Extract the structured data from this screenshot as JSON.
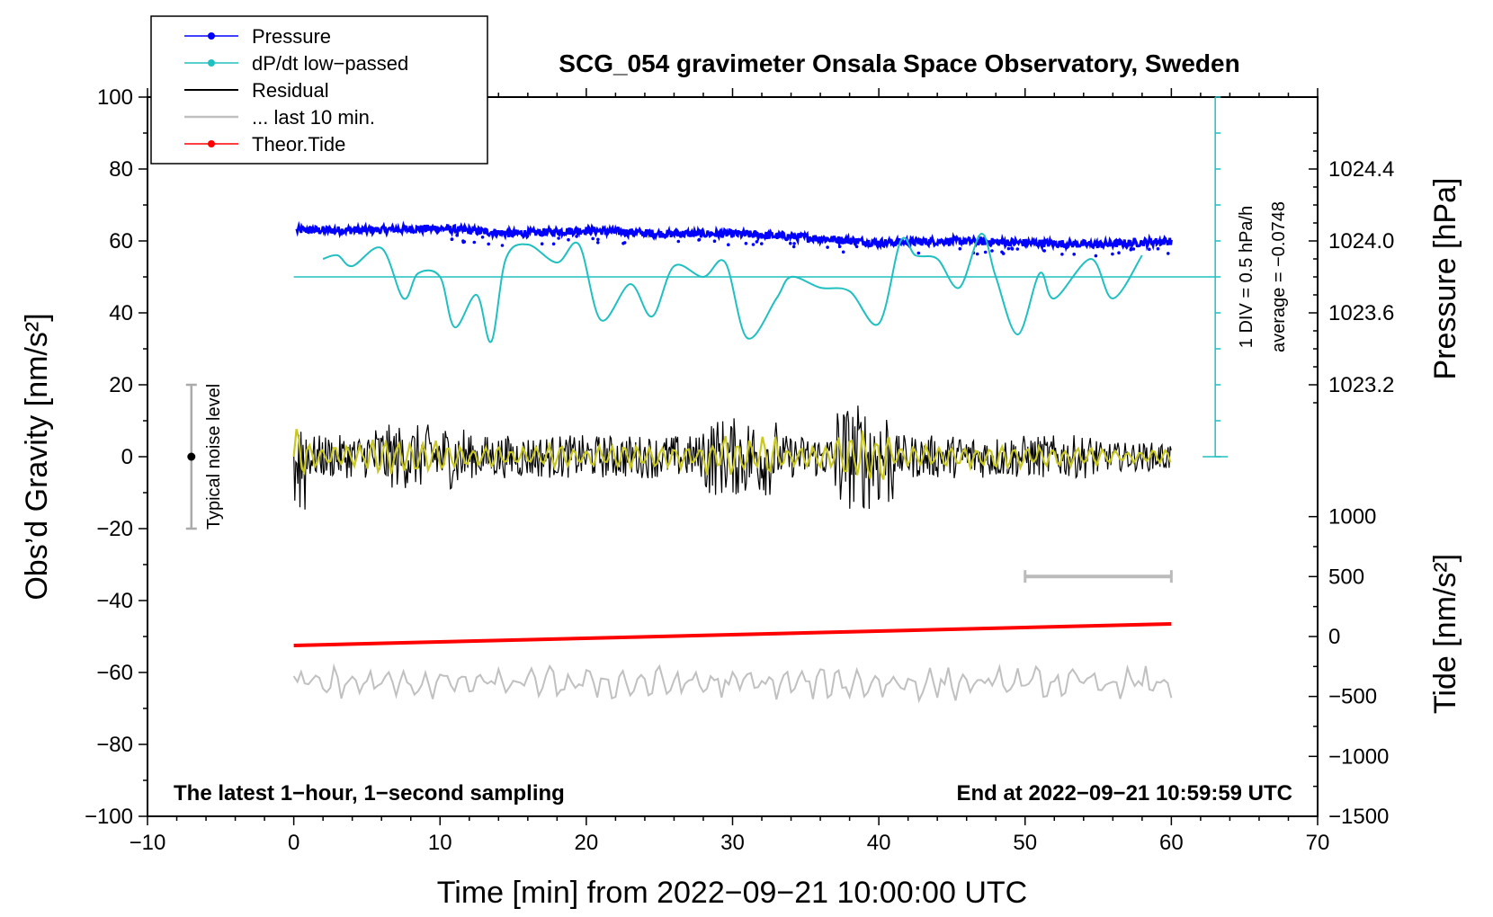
{
  "chart_data": {
    "type": "line",
    "title": "SCG_054 gravimeter Onsala Space Observatory, Sweden",
    "xlabel": "Time [min] from 2022−09−21 10:00:00 UTC",
    "ylabel_left": "Obs’d Gravity [nm/s²]",
    "ylabel_pressure": "Pressure [hPa]",
    "ylabel_tide": "Tide [nm/s²]",
    "xlim": [
      -10,
      70
    ],
    "ylim": [
      -100,
      100
    ],
    "x_ticks": [
      "−10",
      "0",
      "10",
      "20",
      "30",
      "40",
      "50",
      "60",
      "70"
    ],
    "y_ticks": [
      "−100",
      "−80",
      "−60",
      "−40",
      "−20",
      "0",
      "20",
      "40",
      "60",
      "80",
      "100"
    ],
    "pressure_ticks": [
      "1023.2",
      "1023.6",
      "1024.0",
      "1024.4"
    ],
    "tide_ticks": [
      "−1500",
      "−1000",
      "−500",
      "0",
      "500",
      "1000"
    ],
    "footer_left": "The latest 1−hour, 1−second sampling",
    "footer_right": "End at 2022−09−21 10:59:59 UTC",
    "noise_label": "Typical noise level",
    "dpdt_scale_label": "1 DIV = 0.5 hPa/h",
    "dpdt_average_label": "average = −0.0748",
    "legend": [
      {
        "label": "Pressure",
        "color": "#0000ff"
      },
      {
        "label": "dP/dt low−passed",
        "color": "#20c0c0"
      },
      {
        "label": "Residual",
        "color": "#000000"
      },
      {
        "label": "... last 10 min.",
        "color": "#c0c0c0"
      },
      {
        "label": "Theor.Tide",
        "color": "#ff0000"
      }
    ],
    "series": [
      {
        "name": "Pressure",
        "color": "#0000ff",
        "x": [
          0,
          5,
          10,
          15,
          20,
          25,
          30,
          35,
          40,
          45,
          50,
          55,
          60
        ],
        "y": [
          63,
          63,
          63.5,
          62,
          63,
          62,
          62,
          61,
          59.5,
          60,
          59.5,
          59,
          60
        ]
      },
      {
        "name": "dP/dt low−passed",
        "color": "#20c0c0",
        "x": [
          2,
          3,
          4,
          6,
          7.5,
          8.5,
          10,
          11,
          12.5,
          13.5,
          14.5,
          16,
          18,
          19.5,
          21,
          23,
          24.5,
          26,
          28,
          29.5,
          31,
          33,
          34,
          36,
          38,
          40,
          41.5,
          42.5,
          44,
          45.5,
          47,
          48,
          49.5,
          51,
          52,
          54.5,
          56,
          58
        ],
        "y": [
          55,
          56,
          53,
          58,
          44,
          51,
          50,
          36,
          45,
          32,
          55,
          59,
          54,
          59,
          38,
          48,
          39,
          53,
          50,
          54,
          33,
          44,
          50,
          47,
          46,
          37,
          60,
          56,
          55,
          47,
          62,
          50,
          34,
          51,
          44,
          55,
          44,
          56
        ]
      },
      {
        "name": "average dP/dt",
        "color": "#20c0c0",
        "x": [
          0,
          63
        ],
        "y": [
          50,
          50
        ]
      },
      {
        "name": "Theor.Tide",
        "color": "#ff0000",
        "x": [
          0,
          60
        ],
        "y": [
          -52.5,
          -46.5
        ]
      }
    ],
    "noise_bar": {
      "x": -7,
      "y_range": [
        -20,
        20
      ]
    },
    "gray_bar_x_range": [
      50,
      60
    ],
    "dpdt_axis_x": 63
  }
}
